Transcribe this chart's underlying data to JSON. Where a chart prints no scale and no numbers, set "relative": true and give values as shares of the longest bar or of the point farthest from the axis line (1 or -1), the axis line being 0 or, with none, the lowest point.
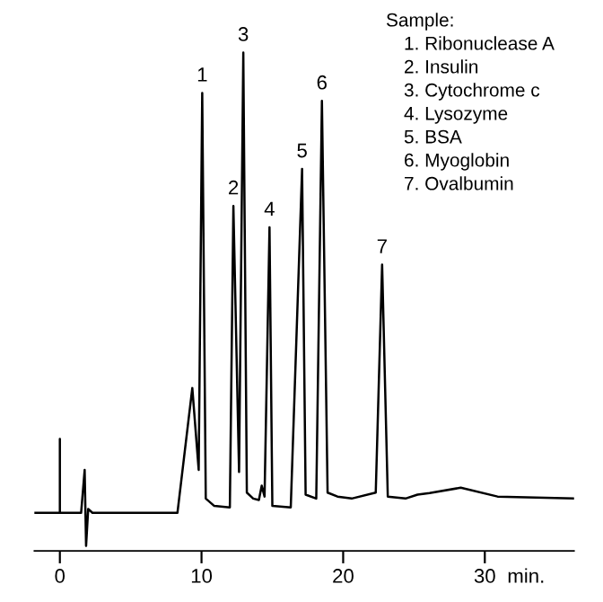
{
  "chart_data": {
    "type": "line",
    "relative": true,
    "x": [
      -1.8,
      0,
      0,
      0,
      1.5,
      1.75,
      1.85,
      2.0,
      2.3,
      8.3,
      9.35,
      9.8,
      10.05,
      10.3,
      10.9,
      12.0,
      12.25,
      12.65,
      12.95,
      13.2,
      13.65,
      14.05,
      14.25,
      14.45,
      14.8,
      15.0,
      16.3,
      17.1,
      17.35,
      18.1,
      18.5,
      18.9,
      19.6,
      20.6,
      22.3,
      22.75,
      23.15,
      24.4,
      25.25,
      26.1,
      28.3,
      30.9,
      36.3
    ],
    "series": [
      {
        "color": "#000000",
        "values": [
          0.067,
          0.067,
          0.217,
          0.067,
          0.067,
          0.154,
          0.0,
          0.075,
          0.067,
          0.067,
          0.32,
          0.154,
          0.918,
          0.096,
          0.081,
          0.078,
          0.689,
          0.15,
          1.0,
          0.108,
          0.096,
          0.093,
          0.122,
          0.1,
          0.646,
          0.081,
          0.078,
          0.764,
          0.104,
          0.096,
          0.902,
          0.108,
          0.1,
          0.096,
          0.108,
          0.57,
          0.1,
          0.096,
          0.104,
          0.107,
          0.118,
          0.1,
          0.096
        ]
      }
    ],
    "xlim": [
      -1.8,
      36.3
    ],
    "xticks": [
      0,
      10,
      20,
      30
    ],
    "xlabel": "min.",
    "annotations": [
      {
        "text": "1",
        "x": 10.05,
        "y": 0.918
      },
      {
        "text": "2",
        "x": 12.25,
        "y": 0.689
      },
      {
        "text": "3",
        "x": 12.95,
        "y": 1.0
      },
      {
        "text": "4",
        "x": 14.8,
        "y": 0.646
      },
      {
        "text": "5",
        "x": 17.1,
        "y": 0.764
      },
      {
        "text": "6",
        "x": 18.5,
        "y": 0.902
      },
      {
        "text": "7",
        "x": 22.75,
        "y": 0.57
      },
      "Sample:",
      "1. Ribonuclease A",
      "2. Insulin",
      "3. Cytochrome c",
      "4. Lysozyme",
      "5. BSA",
      "6. Myoglobin",
      "7. Ovalbumin"
    ]
  }
}
